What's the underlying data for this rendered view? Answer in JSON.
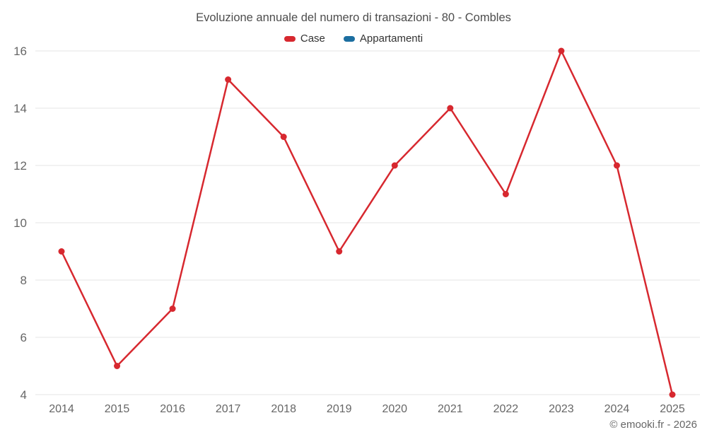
{
  "chart": {
    "title": "Evoluzione annuale del numero di transazioni - 80 - Combles",
    "footer": "© emooki.fr - 2026",
    "legend": [
      {
        "label": "Case",
        "color": "#d7282f"
      },
      {
        "label": "Appartamenti",
        "color": "#1c6ea0"
      }
    ]
  },
  "chart_data": {
    "type": "line",
    "title": "Evoluzione annuale del numero di transazioni - 80 - Combles",
    "categories": [
      "2014",
      "2015",
      "2016",
      "2017",
      "2018",
      "2019",
      "2020",
      "2021",
      "2022",
      "2023",
      "2024",
      "2025"
    ],
    "series": [
      {
        "name": "Case",
        "color": "#d7282f",
        "values": [
          9,
          5,
          7,
          15,
          13,
          9,
          12,
          14,
          11,
          16,
          12,
          4
        ]
      },
      {
        "name": "Appartamenti",
        "color": "#1c6ea0",
        "values": []
      }
    ],
    "xlabel": "",
    "ylabel": "",
    "ylim": [
      4,
      16
    ],
    "yticks": [
      4,
      6,
      8,
      10,
      12,
      14,
      16
    ],
    "grid": true,
    "legend_position": "top",
    "marker": "circle"
  }
}
